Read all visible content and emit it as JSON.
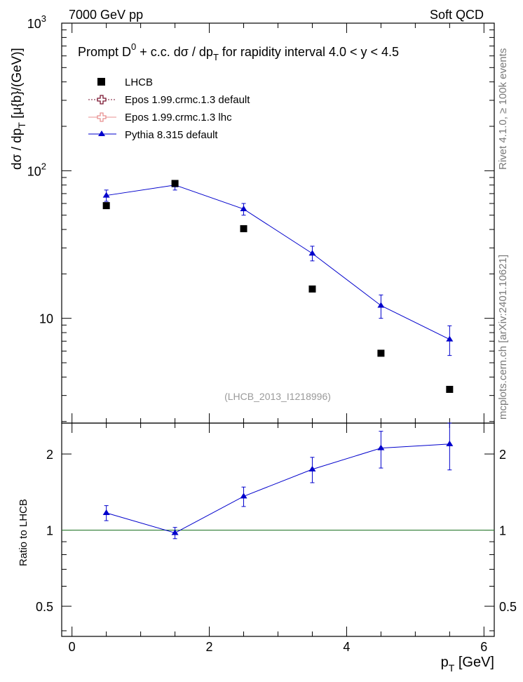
{
  "header": {
    "left": "7000 GeV pp",
    "right": "Soft QCD"
  },
  "side_labels": {
    "rivet": "Rivet 4.1.0, ≥ 100k events",
    "mcplots": "mcplots.cern.ch [arXiv:2401.10621]"
  },
  "chart_data": [
    {
      "type": "scatter",
      "panel": "main",
      "title": "Prompt D⁰ + c.c.  dσ / dp_T for rapidity interval 4.0 < y < 4.5",
      "title_parts": {
        "prefix": "Prompt D",
        "sup": "0",
        "middle": " + c.c.  dσ / dp",
        "sub": "T",
        "suffix": " for rapidity interval 4.0 < y < 4.5"
      },
      "ylabel": "dσ / dp_T [μ{b}/(GeV)]",
      "ylabel_parts": {
        "a": "dσ / dp",
        "sub": "T",
        "b": " [μ{b}/(GeV)]"
      },
      "yscale": "log",
      "ylim": [
        1.95,
        1000
      ],
      "xlim": [
        -0.15,
        6.15
      ],
      "ytick_labels": [
        {
          "value": 10,
          "label": "10"
        },
        {
          "value": 100,
          "label": "10",
          "exp": "2"
        },
        {
          "value": 1000,
          "label": "10",
          "exp": "3"
        }
      ],
      "watermark": "(LHCB_2013_I1218996)",
      "legend_position": "top-left",
      "legend": [
        {
          "label": "LHCB",
          "marker": "square",
          "color": "#000000"
        },
        {
          "label": "Epos 1.99.crmc.1.3 default",
          "marker": "open-cross",
          "color": "#7a1530",
          "dash": true
        },
        {
          "label": "Epos 1.99.crmc.1.3 lhc",
          "marker": "open-cross",
          "color": "#e89090"
        },
        {
          "label": "Pythia 8.315 default",
          "marker": "triangle",
          "color": "#0000cc"
        }
      ],
      "series": [
        {
          "name": "LHCB",
          "x": [
            0.5,
            1.5,
            2.5,
            3.5,
            4.5,
            5.5
          ],
          "y": [
            58,
            82,
            40.5,
            15.8,
            5.8,
            3.3
          ]
        },
        {
          "name": "Pythia 8.315 default",
          "x": [
            0.5,
            1.5,
            2.5,
            3.5,
            4.5,
            5.5
          ],
          "y": [
            68,
            80,
            55,
            27.5,
            12.2,
            7.2
          ],
          "yerr_low": [
            6,
            6,
            5,
            3,
            2.2,
            1.6
          ],
          "yerr_high": [
            6,
            6,
            5,
            3.3,
            2.2,
            1.7
          ]
        }
      ]
    },
    {
      "type": "line",
      "panel": "ratio",
      "ylabel": "Ratio to LHCB",
      "xlabel": "p_T [GeV]",
      "xlabel_parts": {
        "a": "p",
        "sub": "T",
        "b": " [GeV]"
      },
      "yscale": "log",
      "ylim": [
        0.38,
        2.65
      ],
      "xlim": [
        -0.15,
        6.15
      ],
      "xtick_labels": [
        "0",
        "2",
        "4",
        "6"
      ],
      "xticks": [
        0,
        2,
        4,
        6
      ],
      "ytick_labels": [
        {
          "value": 0.5,
          "label": "0.5"
        },
        {
          "value": 1,
          "label": "1"
        },
        {
          "value": 2,
          "label": "2"
        }
      ],
      "reference_line": 1,
      "series": [
        {
          "name": "Pythia 8.315 default",
          "x": [
            0.5,
            1.5,
            2.5,
            3.5,
            4.5,
            5.5
          ],
          "y": [
            1.17,
            0.975,
            1.36,
            1.74,
            2.11,
            2.19
          ],
          "yerr_low": [
            0.08,
            0.05,
            0.12,
            0.2,
            0.35,
            0.46
          ],
          "yerr_high": [
            0.08,
            0.05,
            0.12,
            0.2,
            0.35,
            0.46
          ]
        }
      ]
    }
  ],
  "colors": {
    "axis": "#000000",
    "ref_line": "#2e7d32",
    "watermark": "#9a9a9a",
    "side_text": "#7a7a7a"
  }
}
